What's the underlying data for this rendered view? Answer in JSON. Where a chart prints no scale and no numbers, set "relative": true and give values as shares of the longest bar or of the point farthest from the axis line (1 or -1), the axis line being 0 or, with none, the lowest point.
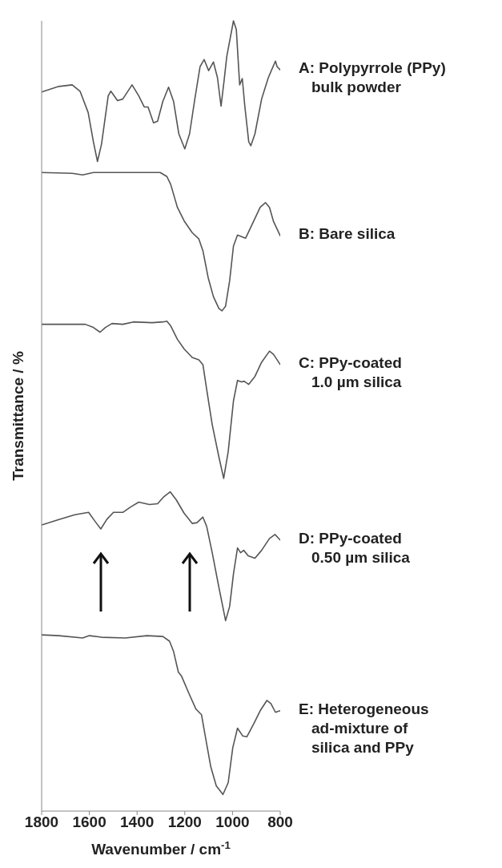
{
  "chart_data": {
    "type": "line",
    "relative": true,
    "xlabel": "Wavenumber / cm$^{-1}$",
    "ylabel": "Transmittance / %",
    "xlim": [
      1800,
      800
    ],
    "xticks": [
      1800,
      1600,
      1400,
      1200,
      1000,
      800
    ],
    "grid": false,
    "legend": false,
    "marker": "none",
    "line_style": "solid",
    "series": [
      {
        "name": "A: Polypyrrole (PPy)\nbulk powder",
        "color": "#555555",
        "x": [
          1800,
          1728,
          1672,
          1639,
          1605,
          1583,
          1566,
          1549,
          1521,
          1510,
          1482,
          1460,
          1421,
          1393,
          1370,
          1354,
          1331,
          1314,
          1292,
          1268,
          1247,
          1225,
          1200,
          1180,
          1158,
          1136,
          1119,
          1100,
          1080,
          1063,
          1048,
          1035,
          1024,
          996,
          984,
          970,
          959,
          948,
          932,
          923,
          906,
          878,
          850,
          833,
          820,
          813,
          800
        ],
        "values": [
          0.91,
          0.917,
          0.919,
          0.911,
          0.884,
          0.847,
          0.822,
          0.844,
          0.905,
          0.911,
          0.899,
          0.901,
          0.919,
          0.905,
          0.891,
          0.891,
          0.871,
          0.873,
          0.898,
          0.916,
          0.898,
          0.857,
          0.838,
          0.857,
          0.901,
          0.942,
          0.951,
          0.937,
          0.948,
          0.928,
          0.892,
          0.925,
          0.955,
          1.0,
          0.989,
          0.919,
          0.927,
          0.891,
          0.847,
          0.842,
          0.857,
          0.901,
          0.928,
          0.94,
          0.949,
          0.942,
          0.938
        ]
      },
      {
        "name": "B: Bare silica",
        "color": "#555555",
        "x": [
          1800,
          1672,
          1628,
          1583,
          1393,
          1303,
          1275,
          1259,
          1231,
          1203,
          1169,
          1141,
          1124,
          1102,
          1080,
          1057,
          1044,
          1029,
          1012,
          996,
          979,
          962,
          945,
          912,
          884,
          862,
          845,
          828,
          800
        ],
        "values": [
          0.808,
          0.807,
          0.805,
          0.808,
          0.808,
          0.808,
          0.803,
          0.793,
          0.764,
          0.747,
          0.732,
          0.724,
          0.709,
          0.675,
          0.651,
          0.636,
          0.633,
          0.639,
          0.671,
          0.715,
          0.729,
          0.727,
          0.725,
          0.746,
          0.764,
          0.77,
          0.764,
          0.746,
          0.728
        ]
      },
      {
        "name": "C: PPy-coated\n1.0 µm silica",
        "color": "#555555",
        "x": [
          1800,
          1617,
          1583,
          1555,
          1533,
          1505,
          1460,
          1415,
          1337,
          1292,
          1275,
          1259,
          1231,
          1203,
          1169,
          1141,
          1124,
          1108,
          1085,
          1057,
          1037,
          1018,
          996,
          979,
          962,
          951,
          932,
          906,
          878,
          845,
          828,
          800
        ],
        "values": [
          0.616,
          0.616,
          0.612,
          0.606,
          0.612,
          0.617,
          0.616,
          0.619,
          0.618,
          0.619,
          0.62,
          0.614,
          0.597,
          0.585,
          0.574,
          0.571,
          0.565,
          0.533,
          0.489,
          0.448,
          0.421,
          0.455,
          0.519,
          0.545,
          0.543,
          0.544,
          0.54,
          0.55,
          0.568,
          0.582,
          0.578,
          0.565
        ]
      },
      {
        "name": "D: PPy-coated\n0.50 µm silica",
        "color": "#555555",
        "x": [
          1800,
          1728,
          1661,
          1603,
          1577,
          1552,
          1527,
          1499,
          1460,
          1426,
          1393,
          1348,
          1314,
          1287,
          1261,
          1236,
          1203,
          1169,
          1149,
          1124,
          1108,
          1085,
          1057,
          1029,
          1012,
          996,
          979,
          966,
          953,
          934,
          906,
          878,
          845,
          822,
          800
        ],
        "values": [
          0.362,
          0.369,
          0.375,
          0.378,
          0.367,
          0.357,
          0.369,
          0.378,
          0.378,
          0.385,
          0.391,
          0.388,
          0.389,
          0.398,
          0.404,
          0.394,
          0.377,
          0.364,
          0.365,
          0.372,
          0.36,
          0.327,
          0.283,
          0.241,
          0.259,
          0.3,
          0.333,
          0.327,
          0.33,
          0.323,
          0.32,
          0.33,
          0.345,
          0.35,
          0.343
        ]
      },
      {
        "name": "E: Heterogeneous\nad-mixture of\nsilica and PPy",
        "color": "#555555",
        "x": [
          1800,
          1728,
          1628,
          1600,
          1549,
          1449,
          1359,
          1292,
          1264,
          1247,
          1227,
          1214,
          1180,
          1153,
          1130,
          1113,
          1091,
          1068,
          1040,
          1018,
          999,
          979,
          957,
          940,
          912,
          884,
          856,
          839,
          820,
          800
        ],
        "values": [
          0.223,
          0.222,
          0.219,
          0.222,
          0.22,
          0.219,
          0.222,
          0.221,
          0.215,
          0.202,
          0.176,
          0.171,
          0.147,
          0.129,
          0.122,
          0.093,
          0.056,
          0.032,
          0.021,
          0.036,
          0.08,
          0.105,
          0.095,
          0.094,
          0.11,
          0.127,
          0.14,
          0.136,
          0.125,
          0.127
        ]
      }
    ]
  }
}
